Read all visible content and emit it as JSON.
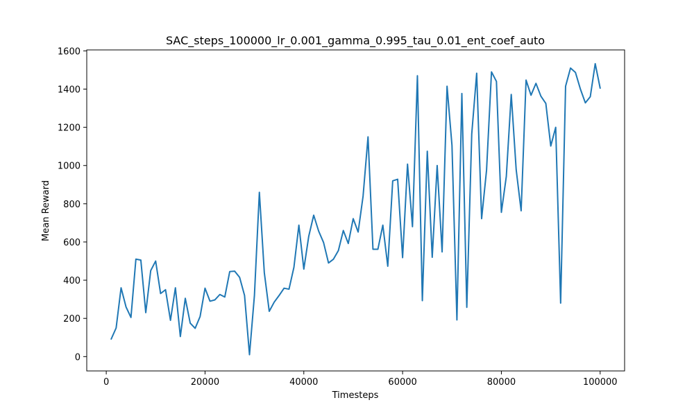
{
  "chart_data": {
    "type": "line",
    "title": "SAC_steps_100000_lr_0.001_gamma_0.995_tau_0.01_ent_coef_auto",
    "xlabel": "Timesteps",
    "ylabel": "Mean Reward",
    "xlim": [
      -3950,
      104950
    ],
    "ylim": [
      -75,
      1605
    ],
    "xticks": [
      0,
      20000,
      40000,
      60000,
      80000,
      100000
    ],
    "yticks": [
      0,
      200,
      400,
      600,
      800,
      1000,
      1200,
      1400,
      1600
    ],
    "grid": false,
    "legend": "none",
    "line_color": "#1f77b4",
    "series": [
      {
        "x": [
          1000,
          2000,
          3000,
          4000,
          5000,
          6000,
          7000,
          8000,
          9000,
          10000,
          11000,
          12000,
          13000,
          14000,
          15000,
          16000,
          17000,
          18000,
          19000,
          20000,
          21000,
          22000,
          23000,
          24000,
          25000,
          26000,
          27000,
          28000,
          29000,
          30000,
          31000,
          32000,
          33000,
          34000,
          35000,
          36000,
          37000,
          38000,
          39000,
          40000,
          41000,
          42000,
          43000,
          44000,
          45000,
          46000,
          47000,
          48000,
          49000,
          50000,
          51000,
          52000,
          53000,
          54000,
          55000,
          56000,
          57000,
          58000,
          59000,
          60000,
          61000,
          62000,
          63000,
          64000,
          65000,
          66000,
          67000,
          68000,
          69000,
          70000,
          71000,
          72000,
          73000,
          74000,
          75000,
          76000,
          77000,
          78000,
          79000,
          80000,
          81000,
          82000,
          83000,
          84000,
          85000,
          86000,
          87000,
          88000,
          89000,
          90000,
          91000,
          92000,
          93000,
          94000,
          95000,
          96000,
          97000,
          98000,
          99000,
          100000
        ],
        "values": [
          92,
          150,
          360,
          260,
          205,
          510,
          505,
          230,
          450,
          500,
          330,
          350,
          190,
          360,
          105,
          305,
          175,
          148,
          210,
          358,
          290,
          297,
          325,
          312,
          445,
          447,
          415,
          320,
          10,
          320,
          860,
          440,
          237,
          285,
          320,
          358,
          353,
          468,
          688,
          458,
          630,
          740,
          657,
          597,
          490,
          510,
          555,
          660,
          592,
          722,
          652,
          840,
          1150,
          562,
          562,
          688,
          473,
          920,
          928,
          518,
          1007,
          680,
          1470,
          293,
          1075,
          520,
          1000,
          548,
          1415,
          1105,
          192,
          1377,
          258,
          1165,
          1483,
          722,
          976,
          1490,
          1440,
          755,
          943,
          1372,
          978,
          763,
          1447,
          1368,
          1430,
          1363,
          1325,
          1102,
          1200,
          280,
          1415,
          1510,
          1487,
          1400,
          1328,
          1360,
          1533,
          1405
        ]
      }
    ]
  }
}
